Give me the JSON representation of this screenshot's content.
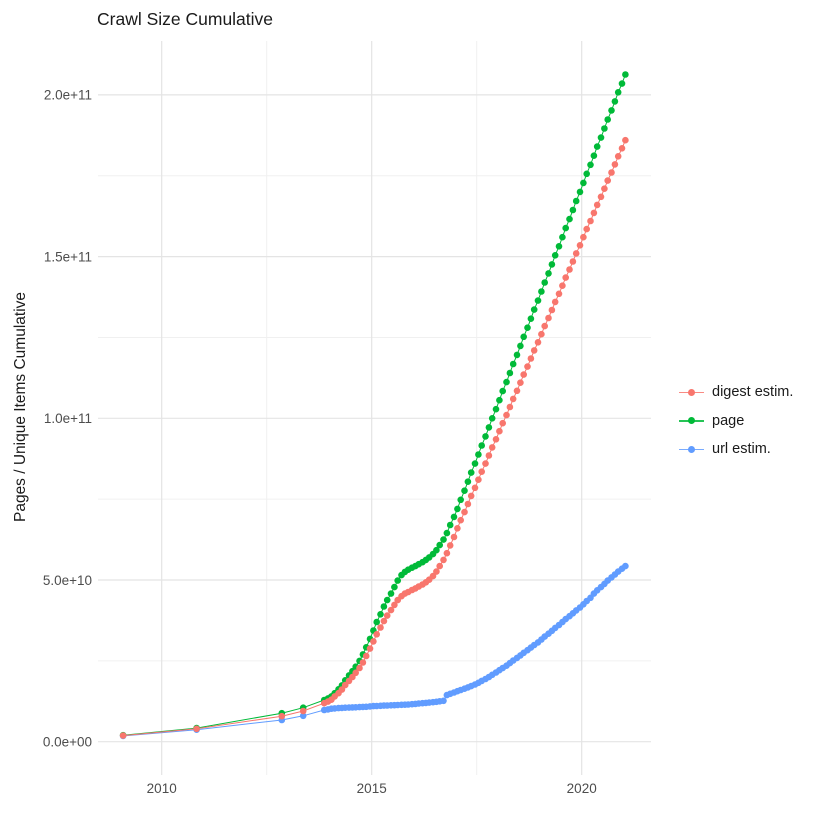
{
  "chart_data": {
    "type": "line",
    "title": "Crawl Size Cumulative",
    "xlabel": "",
    "ylabel": "Pages / Unique Items Cumulative",
    "legend_position": "right",
    "grid": true,
    "xlim": [
      2008.5,
      2021.6
    ],
    "ylim_e9": [
      -10,
      215
    ],
    "unit_note": "values in billions (1e9); y axis shown in scientific notation",
    "x_ticks": [
      {
        "value": 2010,
        "label": "2010"
      },
      {
        "value": 2015,
        "label": "2015"
      },
      {
        "value": 2020,
        "label": "2020"
      }
    ],
    "x_minor_ticks": [
      2012.5,
      2017.5
    ],
    "y_ticks": [
      {
        "value_e9": 0,
        "label": "0.0e+00"
      },
      {
        "value_e9": 50,
        "label": "5.0e+10"
      },
      {
        "value_e9": 100,
        "label": "1.0e+11"
      },
      {
        "value_e9": 150,
        "label": "1.5e+11"
      },
      {
        "value_e9": 200,
        "label": "2.0e+11"
      }
    ],
    "y_minor_ticks_e9": [
      25,
      75,
      125,
      175
    ],
    "draw_order": [
      1,
      2,
      0
    ],
    "series": [
      {
        "name": "digest estim.",
        "color": "#F8766D",
        "points": [
          [
            2009.08,
            1.9
          ],
          [
            2010.83,
            4.0
          ],
          [
            2012.86,
            7.9
          ],
          [
            2013.37,
            9.5
          ],
          [
            2013.87,
            11.9
          ],
          [
            2013.96,
            12.4
          ],
          [
            2014.04,
            13.0
          ],
          [
            2014.12,
            14.0
          ],
          [
            2014.21,
            15.0
          ],
          [
            2014.29,
            16.1
          ],
          [
            2014.37,
            17.5
          ],
          [
            2014.46,
            18.8
          ],
          [
            2014.54,
            20.0
          ],
          [
            2014.62,
            21.3
          ],
          [
            2014.71,
            22.8
          ],
          [
            2014.79,
            24.5
          ],
          [
            2014.87,
            26.5
          ],
          [
            2014.96,
            28.8
          ],
          [
            2015.04,
            31.0
          ],
          [
            2015.12,
            33.2
          ],
          [
            2015.21,
            35.3
          ],
          [
            2015.29,
            37.3
          ],
          [
            2015.37,
            39.0
          ],
          [
            2015.46,
            40.7
          ],
          [
            2015.54,
            42.3
          ],
          [
            2015.62,
            43.8
          ],
          [
            2015.71,
            45.0
          ],
          [
            2015.79,
            45.8
          ],
          [
            2015.87,
            46.3
          ],
          [
            2015.96,
            46.9
          ],
          [
            2016.04,
            47.4
          ],
          [
            2016.12,
            48.0
          ],
          [
            2016.21,
            48.6
          ],
          [
            2016.29,
            49.3
          ],
          [
            2016.37,
            50.1
          ],
          [
            2016.46,
            51.2
          ],
          [
            2016.54,
            52.6
          ],
          [
            2016.62,
            54.3
          ],
          [
            2016.71,
            56.2
          ],
          [
            2016.79,
            58.3
          ],
          [
            2016.87,
            60.7
          ],
          [
            2016.96,
            63.3
          ],
          [
            2017.04,
            66.0
          ],
          [
            2017.12,
            68.5
          ],
          [
            2017.21,
            71.0
          ],
          [
            2017.29,
            73.5
          ],
          [
            2017.37,
            76.0
          ],
          [
            2017.46,
            78.5
          ],
          [
            2017.54,
            81.0
          ],
          [
            2017.62,
            83.5
          ],
          [
            2017.71,
            86.0
          ],
          [
            2017.79,
            88.5
          ],
          [
            2017.87,
            91.0
          ],
          [
            2017.96,
            93.5
          ],
          [
            2018.04,
            96.0
          ],
          [
            2018.12,
            98.5
          ],
          [
            2018.21,
            101.0
          ],
          [
            2018.29,
            103.5
          ],
          [
            2018.37,
            106.0
          ],
          [
            2018.46,
            108.5
          ],
          [
            2018.54,
            111.0
          ],
          [
            2018.62,
            113.5
          ],
          [
            2018.71,
            116.0
          ],
          [
            2018.79,
            118.5
          ],
          [
            2018.87,
            121.0
          ],
          [
            2018.96,
            123.5
          ],
          [
            2019.04,
            126.0
          ],
          [
            2019.12,
            128.5
          ],
          [
            2019.21,
            131.0
          ],
          [
            2019.29,
            133.5
          ],
          [
            2019.37,
            136.0
          ],
          [
            2019.46,
            138.5
          ],
          [
            2019.54,
            141.0
          ],
          [
            2019.62,
            143.5
          ],
          [
            2019.71,
            146.0
          ],
          [
            2019.79,
            148.5
          ],
          [
            2019.87,
            151.0
          ],
          [
            2019.96,
            153.5
          ],
          [
            2020.04,
            156.0
          ],
          [
            2020.12,
            158.5
          ],
          [
            2020.21,
            161.0
          ],
          [
            2020.29,
            163.5
          ],
          [
            2020.37,
            166.0
          ],
          [
            2020.46,
            168.5
          ],
          [
            2020.54,
            171.0
          ],
          [
            2020.62,
            173.5
          ],
          [
            2020.71,
            176.0
          ],
          [
            2020.79,
            178.5
          ],
          [
            2020.87,
            181.0
          ],
          [
            2020.96,
            183.5
          ],
          [
            2021.04,
            186.0
          ]
        ]
      },
      {
        "name": "page",
        "color": "#00BA38",
        "points": [
          [
            2009.08,
            2.0
          ],
          [
            2010.83,
            4.2
          ],
          [
            2012.86,
            8.8
          ],
          [
            2013.37,
            10.5
          ],
          [
            2013.87,
            12.9
          ],
          [
            2013.96,
            13.4
          ],
          [
            2014.04,
            14.0
          ],
          [
            2014.12,
            15.0
          ],
          [
            2014.21,
            16.2
          ],
          [
            2014.29,
            17.4
          ],
          [
            2014.37,
            19.0
          ],
          [
            2014.46,
            20.5
          ],
          [
            2014.54,
            21.8
          ],
          [
            2014.62,
            23.2
          ],
          [
            2014.71,
            25.0
          ],
          [
            2014.79,
            27.0
          ],
          [
            2014.87,
            29.2
          ],
          [
            2014.96,
            31.8
          ],
          [
            2015.04,
            34.4
          ],
          [
            2015.12,
            37.0
          ],
          [
            2015.21,
            39.4
          ],
          [
            2015.29,
            41.8
          ],
          [
            2015.37,
            43.8
          ],
          [
            2015.46,
            45.8
          ],
          [
            2015.54,
            47.8
          ],
          [
            2015.62,
            49.8
          ],
          [
            2015.71,
            51.5
          ],
          [
            2015.79,
            52.5
          ],
          [
            2015.87,
            53.2
          ],
          [
            2015.96,
            53.8
          ],
          [
            2016.04,
            54.3
          ],
          [
            2016.12,
            54.9
          ],
          [
            2016.21,
            55.5
          ],
          [
            2016.29,
            56.2
          ],
          [
            2016.37,
            57.0
          ],
          [
            2016.46,
            58.0
          ],
          [
            2016.54,
            59.2
          ],
          [
            2016.62,
            60.8
          ],
          [
            2016.71,
            62.5
          ],
          [
            2016.79,
            64.5
          ],
          [
            2016.87,
            67.0
          ],
          [
            2016.96,
            69.5
          ],
          [
            2017.04,
            72.0
          ],
          [
            2017.12,
            74.8
          ],
          [
            2017.21,
            77.6
          ],
          [
            2017.29,
            80.4
          ],
          [
            2017.37,
            83.2
          ],
          [
            2017.46,
            86.0
          ],
          [
            2017.54,
            88.8
          ],
          [
            2017.62,
            91.6
          ],
          [
            2017.71,
            94.4
          ],
          [
            2017.79,
            97.2
          ],
          [
            2017.87,
            100.0
          ],
          [
            2017.96,
            102.8
          ],
          [
            2018.04,
            105.6
          ],
          [
            2018.12,
            108.4
          ],
          [
            2018.21,
            111.2
          ],
          [
            2018.29,
            114.0
          ],
          [
            2018.37,
            116.8
          ],
          [
            2018.46,
            119.6
          ],
          [
            2018.54,
            122.4
          ],
          [
            2018.62,
            125.2
          ],
          [
            2018.71,
            128.0
          ],
          [
            2018.79,
            130.8
          ],
          [
            2018.87,
            133.6
          ],
          [
            2018.96,
            136.4
          ],
          [
            2019.04,
            139.2
          ],
          [
            2019.12,
            142.0
          ],
          [
            2019.21,
            144.8
          ],
          [
            2019.29,
            147.6
          ],
          [
            2019.37,
            150.4
          ],
          [
            2019.46,
            153.2
          ],
          [
            2019.54,
            156.0
          ],
          [
            2019.62,
            158.8
          ],
          [
            2019.71,
            161.6
          ],
          [
            2019.79,
            164.4
          ],
          [
            2019.87,
            167.2
          ],
          [
            2019.96,
            170.0
          ],
          [
            2020.04,
            172.8
          ],
          [
            2020.12,
            175.6
          ],
          [
            2020.21,
            178.4
          ],
          [
            2020.29,
            181.2
          ],
          [
            2020.37,
            184.0
          ],
          [
            2020.46,
            186.8
          ],
          [
            2020.54,
            189.6
          ],
          [
            2020.62,
            192.4
          ],
          [
            2020.71,
            195.2
          ],
          [
            2020.79,
            198.0
          ],
          [
            2020.87,
            200.8
          ],
          [
            2020.96,
            203.5
          ],
          [
            2021.04,
            206.3
          ]
        ]
      },
      {
        "name": "url estim.",
        "color": "#619CFF",
        "points": [
          [
            2009.08,
            1.8
          ],
          [
            2010.83,
            3.7
          ],
          [
            2012.86,
            6.7
          ],
          [
            2013.37,
            8.0
          ],
          [
            2013.87,
            9.8
          ],
          [
            2013.96,
            10.0
          ],
          [
            2014.04,
            10.2
          ],
          [
            2014.12,
            10.3
          ],
          [
            2014.21,
            10.4
          ],
          [
            2014.29,
            10.45
          ],
          [
            2014.37,
            10.5
          ],
          [
            2014.46,
            10.55
          ],
          [
            2014.54,
            10.6
          ],
          [
            2014.62,
            10.65
          ],
          [
            2014.71,
            10.7
          ],
          [
            2014.79,
            10.75
          ],
          [
            2014.87,
            10.8
          ],
          [
            2014.96,
            10.9
          ],
          [
            2015.04,
            11.0
          ],
          [
            2015.12,
            11.05
          ],
          [
            2015.21,
            11.1
          ],
          [
            2015.29,
            11.15
          ],
          [
            2015.37,
            11.2
          ],
          [
            2015.46,
            11.25
          ],
          [
            2015.54,
            11.3
          ],
          [
            2015.62,
            11.35
          ],
          [
            2015.71,
            11.4
          ],
          [
            2015.79,
            11.45
          ],
          [
            2015.87,
            11.5
          ],
          [
            2015.96,
            11.6
          ],
          [
            2016.04,
            11.7
          ],
          [
            2016.12,
            11.8
          ],
          [
            2016.21,
            11.9
          ],
          [
            2016.29,
            12.0
          ],
          [
            2016.37,
            12.1
          ],
          [
            2016.46,
            12.2
          ],
          [
            2016.54,
            12.35
          ],
          [
            2016.62,
            12.5
          ],
          [
            2016.71,
            12.65
          ],
          [
            2016.79,
            14.4
          ],
          [
            2016.87,
            14.8
          ],
          [
            2016.96,
            15.2
          ],
          [
            2017.04,
            15.6
          ],
          [
            2017.12,
            16.0
          ],
          [
            2017.21,
            16.4
          ],
          [
            2017.29,
            16.8
          ],
          [
            2017.37,
            17.2
          ],
          [
            2017.46,
            17.7
          ],
          [
            2017.54,
            18.2
          ],
          [
            2017.62,
            18.8
          ],
          [
            2017.71,
            19.4
          ],
          [
            2017.79,
            20.0
          ],
          [
            2017.87,
            20.7
          ],
          [
            2017.96,
            21.4
          ],
          [
            2018.04,
            22.1
          ],
          [
            2018.12,
            22.8
          ],
          [
            2018.21,
            23.5
          ],
          [
            2018.29,
            24.3
          ],
          [
            2018.37,
            25.1
          ],
          [
            2018.46,
            25.9
          ],
          [
            2018.54,
            26.7
          ],
          [
            2018.62,
            27.5
          ],
          [
            2018.71,
            28.3
          ],
          [
            2018.79,
            29.1
          ],
          [
            2018.87,
            29.9
          ],
          [
            2018.96,
            30.7
          ],
          [
            2019.04,
            31.6
          ],
          [
            2019.12,
            32.5
          ],
          [
            2019.21,
            33.4
          ],
          [
            2019.29,
            34.3
          ],
          [
            2019.37,
            35.2
          ],
          [
            2019.46,
            36.1
          ],
          [
            2019.54,
            37.0
          ],
          [
            2019.62,
            37.9
          ],
          [
            2019.71,
            38.8
          ],
          [
            2019.79,
            39.7
          ],
          [
            2019.87,
            40.6
          ],
          [
            2019.96,
            41.5
          ],
          [
            2020.04,
            42.5
          ],
          [
            2020.12,
            43.5
          ],
          [
            2020.21,
            44.5
          ],
          [
            2020.29,
            45.8
          ],
          [
            2020.37,
            46.8
          ],
          [
            2020.46,
            47.8
          ],
          [
            2020.54,
            48.8
          ],
          [
            2020.62,
            49.8
          ],
          [
            2020.71,
            50.8
          ],
          [
            2020.79,
            51.7
          ],
          [
            2020.87,
            52.6
          ],
          [
            2020.96,
            53.5
          ],
          [
            2021.04,
            54.3
          ]
        ]
      }
    ]
  },
  "colors": {
    "background": "#ffffff",
    "grid_major": "#e4e4e4",
    "grid_minor": "#f0f0f0",
    "axis_text": "#4d4d4d",
    "title_text": "#1a1a1a"
  }
}
